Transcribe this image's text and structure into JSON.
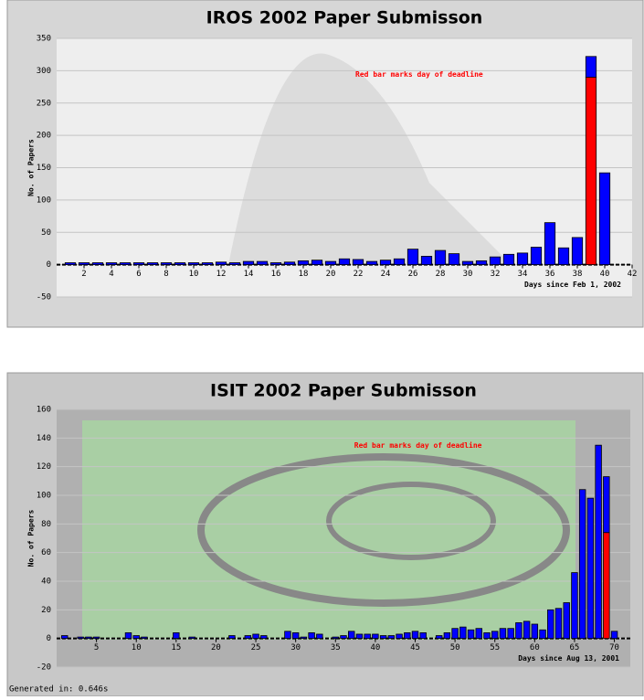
{
  "chart_data": [
    {
      "type": "bar",
      "stacked": true,
      "title": "IROS 2002 Paper Submisson",
      "y_label": "No. of Papers",
      "x_label": "Days since Feb 1, 2002",
      "annotation": "Red bar marks day of deadline",
      "annotation_color": "#ff0000",
      "grid": true,
      "x": [
        1,
        2,
        3,
        4,
        5,
        6,
        7,
        8,
        9,
        10,
        11,
        12,
        13,
        14,
        15,
        16,
        17,
        18,
        19,
        20,
        21,
        22,
        23,
        24,
        25,
        26,
        27,
        28,
        29,
        30,
        31,
        32,
        33,
        34,
        35,
        36,
        37,
        38,
        39,
        40
      ],
      "series": [
        {
          "color": "#ff0000",
          "values": [
            0,
            0,
            0,
            0,
            0,
            0,
            0,
            0,
            0,
            0,
            0,
            0,
            0,
            0,
            0,
            0,
            0,
            0,
            0,
            0,
            0,
            0,
            0,
            0,
            0,
            0,
            0,
            0,
            0,
            0,
            0,
            0,
            0,
            0,
            0,
            0,
            0,
            0,
            290,
            0
          ]
        },
        {
          "color": "#0000ff",
          "values": [
            3,
            3,
            3,
            3,
            3,
            3,
            3,
            3,
            3,
            3,
            3,
            4,
            3,
            5,
            5,
            3,
            4,
            6,
            7,
            5,
            9,
            8,
            5,
            7,
            9,
            24,
            13,
            22,
            17,
            5,
            6,
            12,
            16,
            18,
            27,
            65,
            26,
            42,
            32,
            142
          ]
        }
      ],
      "xlim": [
        0,
        42
      ],
      "xticks": [
        2,
        4,
        6,
        8,
        10,
        12,
        14,
        16,
        18,
        20,
        22,
        24,
        26,
        28,
        30,
        32,
        34,
        36,
        38,
        40,
        42
      ],
      "ylim": [
        -50,
        350
      ],
      "yticks": [
        -50,
        0,
        50,
        100,
        150,
        200,
        250,
        300,
        350
      ]
    },
    {
      "type": "bar",
      "stacked": true,
      "title": "ISIT 2002 Paper Submisson",
      "y_label": "No. of Papers",
      "x_label": "Days since Aug 13, 2001",
      "annotation": "Red bar marks day of deadline",
      "annotation_color": "#ff0000",
      "grid": true,
      "x": [
        1,
        2,
        3,
        4,
        5,
        6,
        7,
        8,
        9,
        10,
        11,
        12,
        13,
        14,
        15,
        16,
        17,
        18,
        19,
        20,
        21,
        22,
        23,
        24,
        25,
        26,
        27,
        28,
        29,
        30,
        31,
        32,
        33,
        34,
        35,
        36,
        37,
        38,
        39,
        40,
        41,
        42,
        43,
        44,
        45,
        46,
        47,
        48,
        49,
        50,
        51,
        52,
        53,
        54,
        55,
        56,
        57,
        58,
        59,
        60,
        61,
        62,
        63,
        64,
        65,
        66,
        67,
        68,
        69,
        70
      ],
      "series": [
        {
          "color": "#ff0000",
          "values": [
            0,
            0,
            0,
            0,
            0,
            0,
            0,
            0,
            0,
            0,
            0,
            0,
            0,
            0,
            0,
            0,
            0,
            0,
            0,
            0,
            0,
            0,
            0,
            0,
            0,
            0,
            0,
            0,
            0,
            0,
            0,
            0,
            0,
            0,
            0,
            0,
            0,
            0,
            0,
            0,
            0,
            0,
            0,
            0,
            0,
            0,
            0,
            0,
            0,
            0,
            0,
            0,
            0,
            0,
            0,
            0,
            0,
            0,
            0,
            0,
            0,
            0,
            0,
            0,
            0,
            0,
            0,
            0,
            74,
            0
          ]
        },
        {
          "color": "#0000ff",
          "values": [
            2,
            0,
            1,
            1,
            1,
            0,
            0,
            0,
            4,
            2,
            1,
            0,
            0,
            0,
            4,
            0,
            1,
            0,
            0,
            0,
            0,
            2,
            0,
            2,
            3,
            2,
            0,
            0,
            5,
            4,
            1,
            4,
            3,
            0,
            1,
            2,
            5,
            3,
            3,
            3,
            2,
            2,
            3,
            4,
            5,
            4,
            0,
            2,
            4,
            7,
            8,
            6,
            7,
            4,
            5,
            7,
            7,
            11,
            12,
            10,
            6,
            20,
            21,
            25,
            46,
            104,
            98,
            135,
            39,
            5
          ]
        }
      ],
      "xlim": [
        0,
        72
      ],
      "xticks": [
        5,
        10,
        15,
        20,
        25,
        30,
        35,
        40,
        45,
        50,
        55,
        60,
        65,
        70
      ],
      "ylim": [
        -20,
        160
      ],
      "yticks": [
        -20,
        0,
        20,
        40,
        60,
        80,
        100,
        120,
        140,
        160
      ]
    }
  ],
  "footer": "Generated in: 0.646s"
}
